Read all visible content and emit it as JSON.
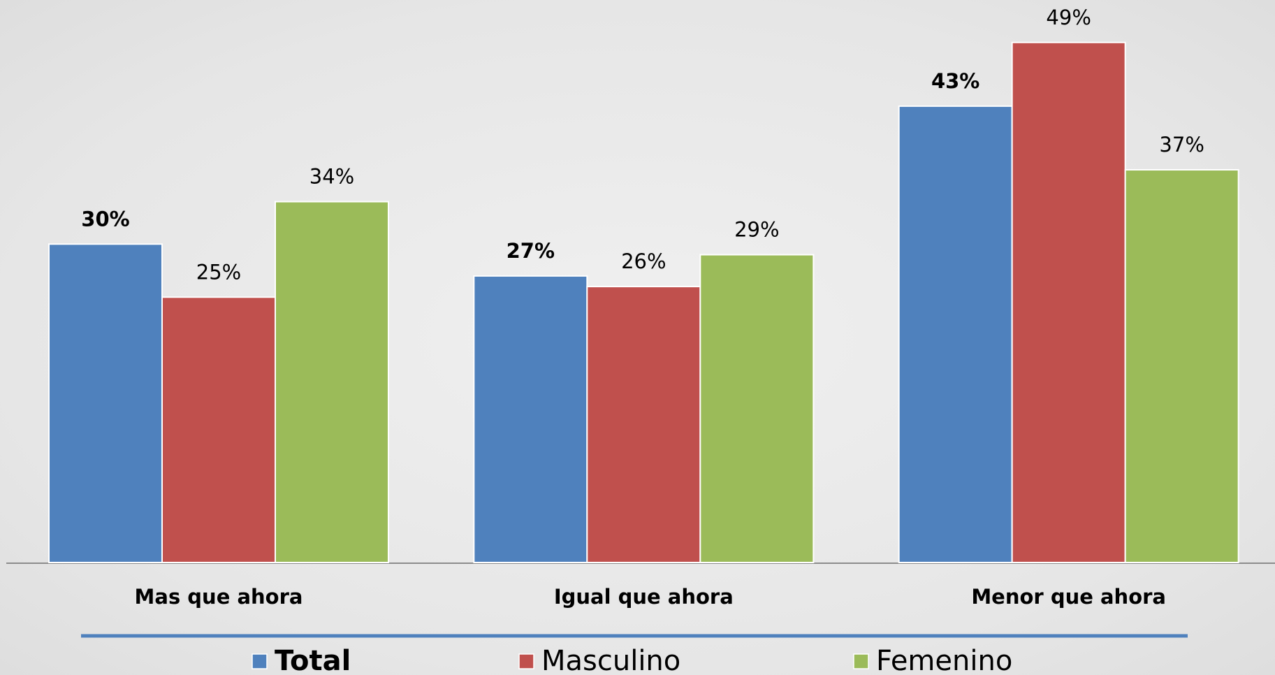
{
  "chart_data": {
    "type": "bar",
    "categories": [
      "Mas que ahora",
      "Igual que ahora",
      "Menor que ahora"
    ],
    "series": [
      {
        "name": "Total",
        "color": "#4f81bd",
        "values": [
          30,
          27,
          43
        ],
        "value_labels": [
          "30%",
          "27%",
          "43%"
        ]
      },
      {
        "name": "Masculino",
        "color": "#c0504d",
        "values": [
          25,
          26,
          49
        ],
        "value_labels": [
          "25%",
          "26%",
          "49%"
        ]
      },
      {
        "name": "Femenino",
        "color": "#9bbb59",
        "values": [
          34,
          29,
          37
        ],
        "value_labels": [
          "34%",
          "29%",
          "37%"
        ]
      }
    ],
    "ylim": [
      0,
      53
    ],
    "legend": "bottom"
  }
}
